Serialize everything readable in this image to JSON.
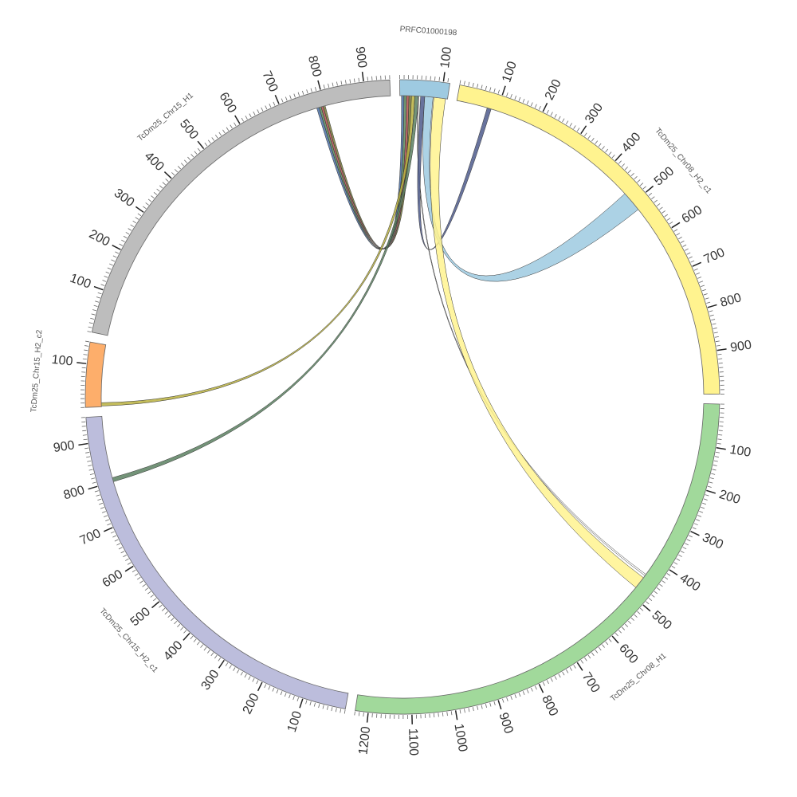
{
  "chart_data": {
    "type": "circos",
    "minor_tick_step": 10,
    "segments": [
      {
        "name": "PRFC01000198",
        "length": 115,
        "color": "#9ecae1",
        "ticks": [
          100
        ]
      },
      {
        "name": "TcDm25_Chr08_H2_c1",
        "length": 1000,
        "color": "#fff38f",
        "ticks": [
          100,
          200,
          300,
          400,
          500,
          600,
          700,
          800,
          900
        ]
      },
      {
        "name": "TcDm25_Chr08_H1",
        "length": 1230,
        "color": "#a1d99b",
        "ticks": [
          100,
          200,
          300,
          400,
          500,
          600,
          700,
          800,
          900,
          1000,
          1100,
          1200
        ]
      },
      {
        "name": "TcDm25_Chr15_H2_c1",
        "length": 960,
        "color": "#bcbddc",
        "ticks": [
          100,
          200,
          300,
          400,
          500,
          600,
          700,
          800,
          900
        ]
      },
      {
        "name": "TcDm25_Chr15_H2_c2",
        "length": 150,
        "color": "#fdae6b",
        "ticks": [
          100
        ]
      },
      {
        "name": "TcDm25_Chr15_H1",
        "length": 960,
        "color": "#bdbdbd",
        "ticks": [
          100,
          200,
          300,
          400,
          500,
          600,
          700,
          800,
          900
        ]
      }
    ],
    "links": [
      {
        "source": 0,
        "source_range": [
          4,
          10
        ],
        "target": 5,
        "target_range": [
          780,
          786
        ],
        "color": "#4a6fa5"
      },
      {
        "source": 0,
        "source_range": [
          10,
          16
        ],
        "target": 5,
        "target_range": [
          786,
          791
        ],
        "color": "#5a8a5a"
      },
      {
        "source": 0,
        "source_range": [
          16,
          22
        ],
        "target": 5,
        "target_range": [
          791,
          796
        ],
        "color": "#b05050"
      },
      {
        "source": 0,
        "source_range": [
          22,
          28
        ],
        "target": 5,
        "target_range": [
          796,
          801
        ],
        "color": "#7a7a3a"
      },
      {
        "source": 0,
        "source_range": [
          28,
          36
        ],
        "target": 4,
        "target_range": [
          2,
          10
        ],
        "color": "#b8b040"
      },
      {
        "source": 0,
        "source_range": [
          36,
          44
        ],
        "target": 3,
        "target_range": [
          800,
          810
        ],
        "color": "#5a8060"
      },
      {
        "source": 0,
        "source_range": [
          44,
          46
        ],
        "target": 2,
        "target_range": [
          440,
          444
        ],
        "color": "#ffffff"
      },
      {
        "source": 0,
        "source_range": [
          50,
          60
        ],
        "target": 1,
        "target_range": [
          75,
          85
        ],
        "color": "#4e5a8c"
      },
      {
        "source": 0,
        "source_range": [
          60,
          80
        ],
        "target": 1,
        "target_range": [
          470,
          520
        ],
        "color": "#9ecae1"
      },
      {
        "source": 0,
        "source_range": [
          82,
          110
        ],
        "target": 2,
        "target_range": [
          450,
          480
        ],
        "color": "#fff38f"
      }
    ]
  }
}
